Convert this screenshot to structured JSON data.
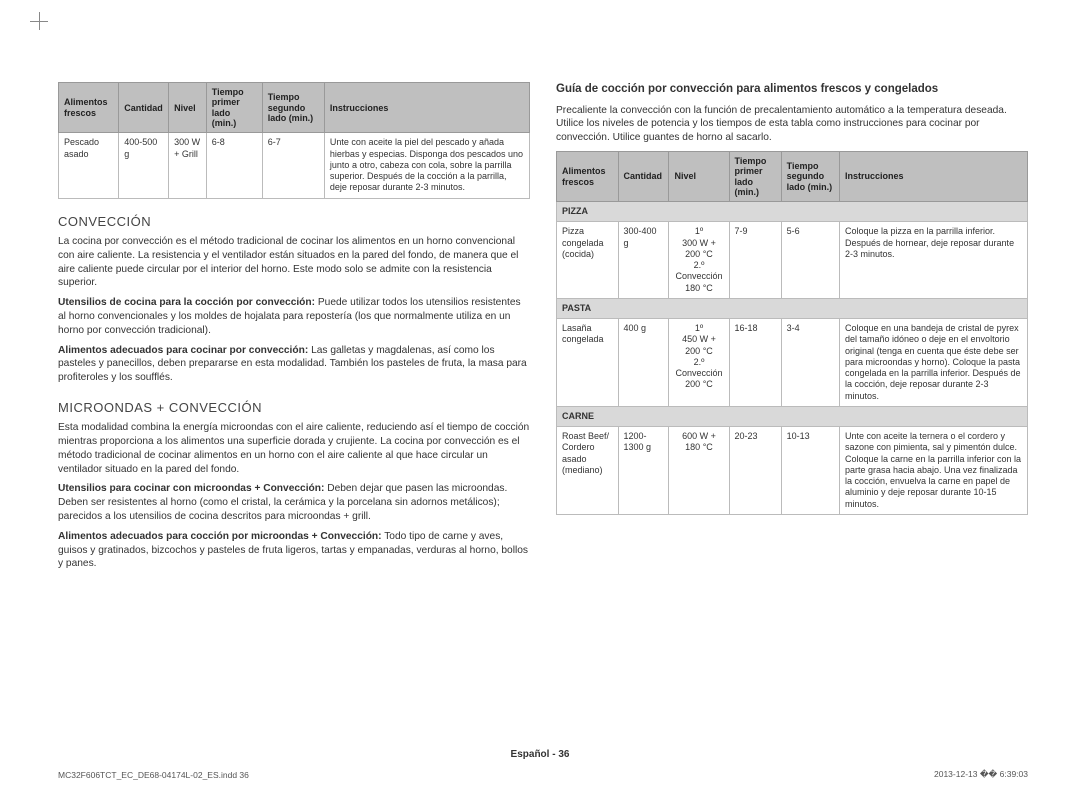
{
  "left": {
    "table1": {
      "headers": [
        "Alimentos frescos",
        "Cantidad",
        "Nivel",
        "Tiempo primer lado (min.)",
        "Tiempo segundo lado (min.)",
        "Instrucciones"
      ],
      "row": {
        "food": "Pescado asado",
        "qty": "400-500 g",
        "level": "300 W + Grill",
        "t1": "6-8",
        "t2": "6-7",
        "instr": "Unte con aceite la piel del pescado y añada hierbas y especias. Disponga dos pescados uno junto a otro, cabeza con cola, sobre la parrilla superior. Después de la cocción a la parrilla, deje reposar durante 2-3 minutos."
      }
    },
    "h_conv": "CONVECCIÓN",
    "conv_p1": "La cocina por convección es el método tradicional de cocinar los alimentos en un horno convencional con aire caliente. La resistencia y el ventilador están situados en la pared del fondo, de manera que el aire caliente puede circular por el interior del horno. Este modo solo se admite con la resistencia superior.",
    "conv_p2_b": "Utensilios de cocina para la cocción por convección:",
    "conv_p2": " Puede utilizar todos los utensilios resistentes al horno convencionales y los moldes de hojalata para repostería (los que normalmente utiliza en un horno por convección tradicional).",
    "conv_p3_b": "Alimentos adecuados para cocinar por convección:",
    "conv_p3": " Las galletas y magdalenas, así como los pasteles y panecillos, deben prepararse en esta modalidad. También los pasteles de fruta, la masa para profiteroles y los soufflés.",
    "h_mc": "MICROONDAS + CONVECCIÓN",
    "mc_p1": "Esta modalidad combina la energía microondas con el aire caliente, reduciendo así el tiempo de cocción mientras proporciona a los alimentos una superficie dorada y crujiente. La cocina por convección es el método tradicional de cocinar alimentos en un horno con el aire caliente al que hace circular un ventilador situado en la pared del fondo.",
    "mc_p2_b": "Utensilios para cocinar con microondas + Convección:",
    "mc_p2": " Deben dejar que pasen las microondas. Deben ser resistentes al horno (como el cristal, la cerámica y la porcelana sin adornos metálicos); parecidos a los utensilios de cocina descritos para microondas + grill.",
    "mc_p3_b": "Alimentos adecuados para cocción por microondas + Convección:",
    "mc_p3": " Todo tipo de carne y aves, guisos y gratinados, bizcochos y pasteles de fruta ligeros, tartas y empanadas, verduras al horno, bollos y panes."
  },
  "right": {
    "guide_title": "Guía de cocción por convección para alimentos frescos y congelados",
    "guide_intro": "Precaliente la convección con la función de precalentamiento automático a la temperatura deseada. Utilice los niveles de potencia y los tiempos de esta tabla como instrucciones para cocinar por convección. Utilice guantes de horno al sacarlo.",
    "headers": [
      "Alimentos frescos",
      "Cantidad",
      "Nivel",
      "Tiempo primer lado (min.)",
      "Tiempo segundo lado (min.)",
      "Instrucciones"
    ],
    "sections": {
      "pizza": "PIZZA",
      "pasta": "PASTA",
      "carne": "CARNE"
    },
    "rows": {
      "pizza": {
        "food": "Pizza congelada (cocida)",
        "qty": "300-400 g",
        "level": "1º\n300 W + 200 °C\n2.º\nConvección\n180 °C",
        "t1": "7-9",
        "t2": "5-6",
        "instr": "Coloque la pizza en la parrilla inferior. Después de hornear, deje reposar durante 2-3 minutos."
      },
      "pasta": {
        "food": "Lasaña congelada",
        "qty": "400 g",
        "level": "1º\n450 W + 200 °C\n2.º\nConvección\n200 °C",
        "t1": "16-18",
        "t2": "3-4",
        "instr": "Coloque en una bandeja de cristal de pyrex del tamaño idóneo o deje en el envoltorio original (tenga en cuenta que éste debe ser para microondas y horno). Coloque la pasta congelada en la parrilla inferior. Después de la cocción, deje reposar durante 2-3 minutos."
      },
      "carne": {
        "food": "Roast Beef/\nCordero asado (mediano)",
        "qty": "1200-1300 g",
        "level": "600 W + 180 °C",
        "t1": "20-23",
        "t2": "10-13",
        "instr": "Unte con aceite la ternera o el cordero y sazone con pimienta, sal y pimentón dulce. Coloque la carne en la parrilla inferior con la parte grasa hacia abajo. Una vez finalizada la cocción, envuelva la carne en papel de aluminio y deje reposar durante 10-15 minutos."
      }
    }
  },
  "footer": "Español - 36",
  "meta_left": "MC32F606TCT_EC_DE68-04174L-02_ES.indd   36",
  "meta_right": "2013-12-13   �� 6:39:03"
}
